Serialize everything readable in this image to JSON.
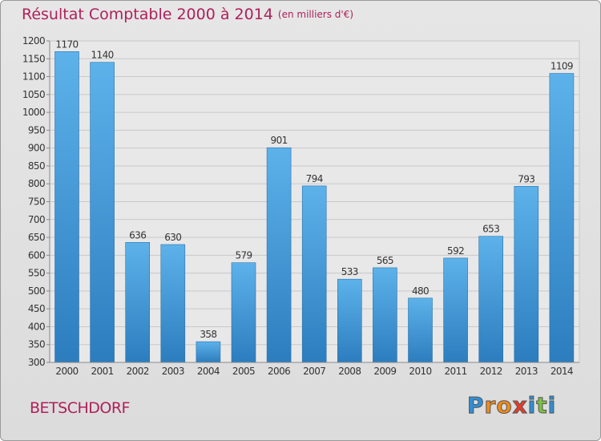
{
  "chart_data": {
    "type": "bar",
    "title": "Résultat Comptable 2000 à 2014",
    "subtitle": "(en milliers d'€)",
    "categories": [
      "2000",
      "2001",
      "2002",
      "2003",
      "2004",
      "2005",
      "2006",
      "2007",
      "2008",
      "2009",
      "2010",
      "2011",
      "2012",
      "2013",
      "2014"
    ],
    "values": [
      1170,
      1140,
      636,
      630,
      358,
      579,
      901,
      794,
      533,
      565,
      480,
      592,
      653,
      793,
      1109
    ],
    "ylim": [
      300,
      1200
    ],
    "yticks": [
      300,
      350,
      400,
      450,
      500,
      550,
      600,
      650,
      700,
      750,
      800,
      850,
      900,
      950,
      1000,
      1050,
      1100,
      1150,
      1200
    ],
    "grid": true,
    "bar_color": "#3f97d9",
    "title_color": "#b0205a"
  },
  "footer": {
    "place": "BETSCHDORF"
  },
  "logo": {
    "text": "Proxiti",
    "letters": [
      "P",
      "r",
      "o",
      "x",
      "i",
      "t",
      "i"
    ],
    "colors": [
      "#2f8fd8",
      "#f08a1a",
      "#f08a1a",
      "#e83a2a",
      "#2f8fd8",
      "#7cc242",
      "#2f8fd8"
    ]
  }
}
